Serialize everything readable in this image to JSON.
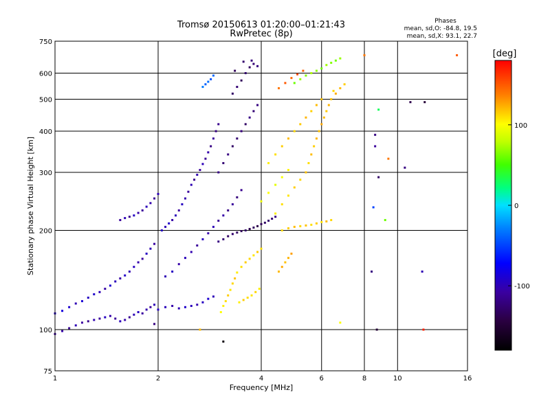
{
  "chart_data": {
    "type": "scatter",
    "title": "Tromsø 20150613 01:20:00–01:21:43",
    "subtitle": "RwPretec (8p)",
    "xlabel": "Frequency [MHz]",
    "ylabel": "Stationary phase Virtual Height [km]",
    "x_scale": "log",
    "y_scale": "log",
    "xlim": [
      1,
      16
    ],
    "ylim": [
      75,
      750
    ],
    "x_ticks": [
      1,
      2,
      4,
      6,
      8,
      10,
      16
    ],
    "y_ticks": [
      75,
      100,
      200,
      300,
      400,
      500,
      600,
      750
    ],
    "grid": true,
    "phase_summary": {
      "heading": "Phases",
      "line_o": "mean, sd,O: -84.8, 19.5",
      "line_x": "mean, sd,X:  93.1, 22.7"
    },
    "colorbar": {
      "label": "[deg]",
      "range": [
        -180,
        180
      ],
      "ticks": [
        100,
        0,
        -100
      ],
      "tick_labels": [
        "100",
        "0",
        "-100"
      ]
    },
    "points": [
      [
        1.0,
        97,
        -110
      ],
      [
        1.05,
        99,
        -105
      ],
      [
        1.1,
        101,
        -112
      ],
      [
        1.15,
        103,
        -100
      ],
      [
        1.2,
        105,
        -108
      ],
      [
        1.25,
        106,
        -115
      ],
      [
        1.3,
        107,
        -102
      ],
      [
        1.35,
        108,
        -110
      ],
      [
        1.4,
        109,
        -95
      ],
      [
        1.45,
        110,
        -105
      ],
      [
        1.5,
        108,
        -110
      ],
      [
        1.55,
        106,
        -98
      ],
      [
        1.6,
        107,
        -104
      ],
      [
        1.65,
        109,
        -112
      ],
      [
        1.7,
        111,
        -100
      ],
      [
        1.75,
        113,
        -96
      ],
      [
        1.8,
        112,
        -108
      ],
      [
        1.85,
        115,
        -103
      ],
      [
        1.9,
        117,
        -110
      ],
      [
        1.95,
        119,
        -100
      ],
      [
        2.0,
        115,
        -95
      ],
      [
        2.1,
        117,
        -98
      ],
      [
        2.2,
        118,
        -104
      ],
      [
        2.3,
        116,
        -100
      ],
      [
        2.4,
        117,
        -92
      ],
      [
        2.5,
        118,
        -97
      ],
      [
        2.6,
        119,
        -102
      ],
      [
        2.7,
        121,
        -95
      ],
      [
        2.8,
        124,
        -90
      ],
      [
        2.9,
        126,
        -99
      ],
      [
        1.0,
        112,
        -95
      ],
      [
        1.05,
        114,
        -85
      ],
      [
        1.1,
        117,
        -90
      ],
      [
        1.15,
        120,
        -100
      ],
      [
        1.2,
        122,
        -88
      ],
      [
        1.25,
        125,
        -95
      ],
      [
        1.3,
        128,
        -92
      ],
      [
        1.35,
        130,
        -100
      ],
      [
        1.4,
        133,
        -105
      ],
      [
        1.45,
        136,
        -90
      ],
      [
        1.5,
        140,
        -98
      ],
      [
        1.55,
        143,
        -105
      ],
      [
        1.6,
        146,
        -93
      ],
      [
        1.65,
        150,
        -101
      ],
      [
        1.7,
        155,
        -96
      ],
      [
        1.75,
        160,
        -104
      ],
      [
        1.8,
        164,
        -110
      ],
      [
        1.85,
        170,
        -95
      ],
      [
        1.9,
        176,
        -100
      ],
      [
        1.95,
        182,
        -108
      ],
      [
        1.55,
        215,
        -110
      ],
      [
        1.6,
        218,
        -100
      ],
      [
        1.65,
        220,
        -115
      ],
      [
        1.7,
        222,
        -95
      ],
      [
        1.75,
        226,
        -105
      ],
      [
        1.8,
        230,
        -110
      ],
      [
        1.85,
        236,
        -98
      ],
      [
        1.9,
        242,
        -104
      ],
      [
        1.95,
        250,
        -112
      ],
      [
        2.0,
        258,
        -100
      ],
      [
        2.05,
        200,
        -95
      ],
      [
        2.1,
        205,
        -100
      ],
      [
        2.15,
        210,
        -92
      ],
      [
        2.2,
        215,
        -105
      ],
      [
        2.25,
        222,
        -98
      ],
      [
        2.3,
        230,
        -108
      ],
      [
        2.35,
        240,
        -96
      ],
      [
        2.4,
        250,
        -103
      ],
      [
        2.45,
        262,
        -110
      ],
      [
        2.5,
        275,
        -100
      ],
      [
        2.55,
        285,
        -115
      ],
      [
        2.6,
        295,
        -102
      ],
      [
        2.65,
        305,
        -108
      ],
      [
        2.7,
        318,
        -99
      ],
      [
        2.75,
        330,
        -112
      ],
      [
        2.8,
        345,
        -104
      ],
      [
        2.85,
        360,
        -118
      ],
      [
        2.9,
        380,
        -110
      ],
      [
        2.95,
        400,
        -120
      ],
      [
        3.0,
        420,
        -115
      ],
      [
        2.1,
        145,
        -100
      ],
      [
        2.2,
        150,
        -95
      ],
      [
        2.3,
        158,
        -105
      ],
      [
        2.4,
        165,
        -98
      ],
      [
        2.5,
        172,
        -102
      ],
      [
        2.6,
        180,
        -110
      ],
      [
        2.7,
        188,
        -96
      ],
      [
        2.8,
        196,
        -104
      ],
      [
        2.9,
        205,
        -100
      ],
      [
        3.0,
        214,
        -112
      ],
      [
        3.1,
        222,
        -105
      ],
      [
        3.2,
        230,
        -118
      ],
      [
        3.3,
        240,
        -110
      ],
      [
        3.4,
        252,
        -122
      ],
      [
        3.5,
        265,
        -115
      ],
      [
        3.0,
        185,
        -120
      ],
      [
        3.1,
        188,
        -125
      ],
      [
        3.2,
        192,
        -130
      ],
      [
        3.3,
        195,
        -128
      ],
      [
        3.4,
        197,
        -132
      ],
      [
        3.5,
        199,
        -135
      ],
      [
        3.6,
        200,
        -130
      ],
      [
        3.7,
        202,
        -138
      ],
      [
        3.8,
        204,
        -133
      ],
      [
        3.9,
        206,
        -140
      ],
      [
        4.0,
        209,
        -135
      ],
      [
        4.1,
        211,
        -130
      ],
      [
        4.2,
        214,
        -128
      ],
      [
        4.3,
        217,
        -125
      ],
      [
        4.4,
        220,
        -120
      ],
      [
        3.0,
        300,
        -118
      ],
      [
        3.1,
        320,
        -125
      ],
      [
        3.2,
        340,
        -120
      ],
      [
        3.3,
        360,
        -130
      ],
      [
        3.4,
        380,
        -126
      ],
      [
        3.5,
        400,
        -122
      ],
      [
        3.6,
        420,
        -130
      ],
      [
        3.7,
        440,
        -118
      ],
      [
        3.8,
        460,
        -125
      ],
      [
        3.9,
        480,
        -120
      ],
      [
        3.3,
        520,
        -130
      ],
      [
        3.4,
        545,
        -125
      ],
      [
        3.5,
        570,
        -135
      ],
      [
        3.6,
        600,
        -128
      ],
      [
        3.7,
        625,
        -132
      ],
      [
        3.8,
        640,
        -125
      ],
      [
        3.9,
        630,
        -120
      ],
      [
        3.35,
        610,
        -135
      ],
      [
        3.55,
        650,
        -128
      ],
      [
        3.75,
        655,
        -122
      ],
      [
        2.7,
        545,
        -30
      ],
      [
        2.75,
        555,
        -40
      ],
      [
        2.8,
        565,
        -35
      ],
      [
        2.85,
        575,
        -45
      ],
      [
        2.9,
        590,
        -38
      ],
      [
        3.05,
        113,
        100
      ],
      [
        3.1,
        118,
        105
      ],
      [
        3.15,
        122,
        110
      ],
      [
        3.2,
        127,
        115
      ],
      [
        3.25,
        132,
        108
      ],
      [
        3.3,
        138,
        112
      ],
      [
        3.35,
        143,
        118
      ],
      [
        3.4,
        149,
        106
      ],
      [
        3.5,
        155,
        110
      ],
      [
        3.6,
        160,
        115
      ],
      [
        3.7,
        164,
        112
      ],
      [
        3.8,
        168,
        108
      ],
      [
        3.9,
        172,
        116
      ],
      [
        4.0,
        176,
        110
      ],
      [
        3.45,
        121,
        105
      ],
      [
        3.55,
        123,
        115
      ],
      [
        3.65,
        125,
        110
      ],
      [
        3.75,
        127,
        108
      ],
      [
        3.85,
        130,
        112
      ],
      [
        3.95,
        133,
        106
      ],
      [
        4.6,
        200,
        110
      ],
      [
        4.8,
        203,
        115
      ],
      [
        5.0,
        205,
        120
      ],
      [
        5.2,
        206,
        112
      ],
      [
        5.4,
        207,
        118
      ],
      [
        5.6,
        208,
        110
      ],
      [
        5.8,
        210,
        115
      ],
      [
        6.0,
        212,
        108
      ],
      [
        6.2,
        213,
        120
      ],
      [
        6.4,
        215,
        112
      ],
      [
        4.4,
        225,
        105
      ],
      [
        4.6,
        240,
        110
      ],
      [
        4.8,
        255,
        108
      ],
      [
        5.0,
        270,
        115
      ],
      [
        5.2,
        285,
        112
      ],
      [
        5.4,
        300,
        118
      ],
      [
        5.5,
        320,
        110
      ],
      [
        5.6,
        340,
        120
      ],
      [
        5.7,
        360,
        115
      ],
      [
        5.8,
        380,
        122
      ],
      [
        5.9,
        400,
        118
      ],
      [
        6.0,
        420,
        125
      ],
      [
        6.1,
        440,
        120
      ],
      [
        6.2,
        460,
        116
      ],
      [
        6.3,
        480,
        122
      ],
      [
        6.4,
        500,
        118
      ],
      [
        6.6,
        520,
        124
      ],
      [
        6.8,
        540,
        120
      ],
      [
        7.0,
        555,
        115
      ],
      [
        6.5,
        530,
        112
      ],
      [
        4.2,
        320,
        105
      ],
      [
        4.4,
        340,
        110
      ],
      [
        4.6,
        360,
        115
      ],
      [
        4.8,
        380,
        120
      ],
      [
        5.0,
        400,
        112
      ],
      [
        5.2,
        420,
        116
      ],
      [
        5.4,
        440,
        122
      ],
      [
        5.6,
        460,
        114
      ],
      [
        5.8,
        480,
        120
      ],
      [
        6.0,
        500,
        118
      ],
      [
        4.0,
        245,
        95
      ],
      [
        4.2,
        260,
        100
      ],
      [
        4.4,
        275,
        92
      ],
      [
        4.6,
        290,
        98
      ],
      [
        4.8,
        305,
        104
      ],
      [
        5.0,
        560,
        60
      ],
      [
        5.2,
        575,
        70
      ],
      [
        5.4,
        590,
        65
      ],
      [
        5.6,
        600,
        75
      ],
      [
        5.8,
        610,
        68
      ],
      [
        6.0,
        620,
        60
      ],
      [
        6.2,
        635,
        72
      ],
      [
        6.4,
        645,
        66
      ],
      [
        6.6,
        655,
        62
      ],
      [
        6.8,
        665,
        70
      ],
      [
        4.5,
        540,
        140
      ],
      [
        4.7,
        560,
        150
      ],
      [
        4.9,
        580,
        145
      ],
      [
        5.1,
        595,
        155
      ],
      [
        5.3,
        610,
        148
      ],
      [
        4.5,
        150,
        120
      ],
      [
        4.6,
        155,
        125
      ],
      [
        4.7,
        160,
        118
      ],
      [
        4.8,
        165,
        122
      ],
      [
        4.9,
        170,
        128
      ],
      [
        8.6,
        360,
        -110
      ],
      [
        8.6,
        390,
        -120
      ],
      [
        8.8,
        290,
        -130
      ],
      [
        8.5,
        235,
        -50
      ],
      [
        9.2,
        215,
        60
      ],
      [
        10.5,
        310,
        -120
      ],
      [
        12.0,
        490,
        -150
      ],
      [
        11.8,
        150,
        -100
      ],
      [
        8.7,
        100,
        -150
      ],
      [
        8.4,
        150,
        -120
      ],
      [
        8.8,
        465,
        30
      ],
      [
        6.8,
        105,
        100
      ],
      [
        2.65,
        100,
        120
      ],
      [
        1.95,
        104,
        -120
      ],
      [
        3.1,
        92,
        -175
      ],
      [
        14.9,
        680,
        150
      ],
      [
        11.9,
        100,
        170
      ],
      [
        10.9,
        490,
        -140
      ],
      [
        8.0,
        680,
        140
      ],
      [
        9.4,
        330,
        140
      ]
    ]
  }
}
